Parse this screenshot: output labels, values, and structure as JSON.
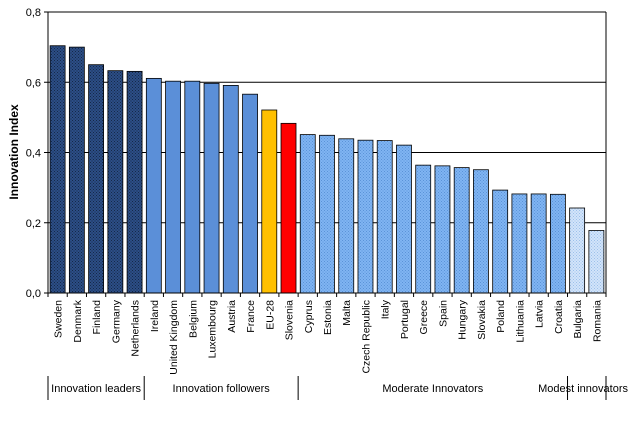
{
  "chart_data": {
    "type": "bar",
    "ylabel": "Innovation Index",
    "ylim": [
      0,
      0.8
    ],
    "yticks": [
      "0,0",
      "0,2",
      "0,4",
      "0,6",
      "0,8"
    ],
    "grid": "horizontal",
    "categories": [
      "Sweden",
      "Denmark",
      "Finland",
      "Germany",
      "Netherlands",
      "Ireland",
      "United Kingdom",
      "Belgium",
      "Luxembourg",
      "Austria",
      "France",
      "EU-28",
      "Slovenia",
      "Cyprus",
      "Estonia",
      "Malta",
      "Czech Republic",
      "Italy",
      "Portugal",
      "Greece",
      "Spain",
      "Hungary",
      "Slovakia",
      "Poland",
      "Lithuania",
      "Latvia",
      "Croatia",
      "Bulgaria",
      "Romania"
    ],
    "values": [
      0.704,
      0.7,
      0.65,
      0.633,
      0.631,
      0.611,
      0.603,
      0.603,
      0.597,
      0.591,
      0.566,
      0.521,
      0.483,
      0.451,
      0.449,
      0.439,
      0.435,
      0.434,
      0.421,
      0.364,
      0.362,
      0.357,
      0.351,
      0.293,
      0.282,
      0.282,
      0.281,
      0.242,
      0.178
    ],
    "bar_groups": [
      "leader",
      "leader",
      "leader",
      "leader",
      "leader",
      "follower",
      "follower",
      "follower",
      "follower",
      "follower",
      "follower",
      "eu",
      "slovenia",
      "moderate",
      "moderate",
      "moderate",
      "moderate",
      "moderate",
      "moderate",
      "moderate",
      "moderate",
      "moderate",
      "moderate",
      "moderate",
      "moderate",
      "moderate",
      "moderate",
      "modest",
      "modest"
    ],
    "group_colors": {
      "leader": "#2a4a80",
      "follower": "#5b8fd8",
      "eu": "#ffc000",
      "slovenia": "#ff0000",
      "moderate": "#7fb2f0",
      "modest": "#c6dcf7"
    },
    "groups": [
      {
        "label": "Innovation leaders",
        "start": 0,
        "end": 4
      },
      {
        "label": "Innovation followers",
        "start": 5,
        "end": 12
      },
      {
        "label": "Moderate Innovators",
        "start": 13,
        "end": 26
      },
      {
        "label": "Modest innovators",
        "start": 27,
        "end": 28
      }
    ]
  }
}
